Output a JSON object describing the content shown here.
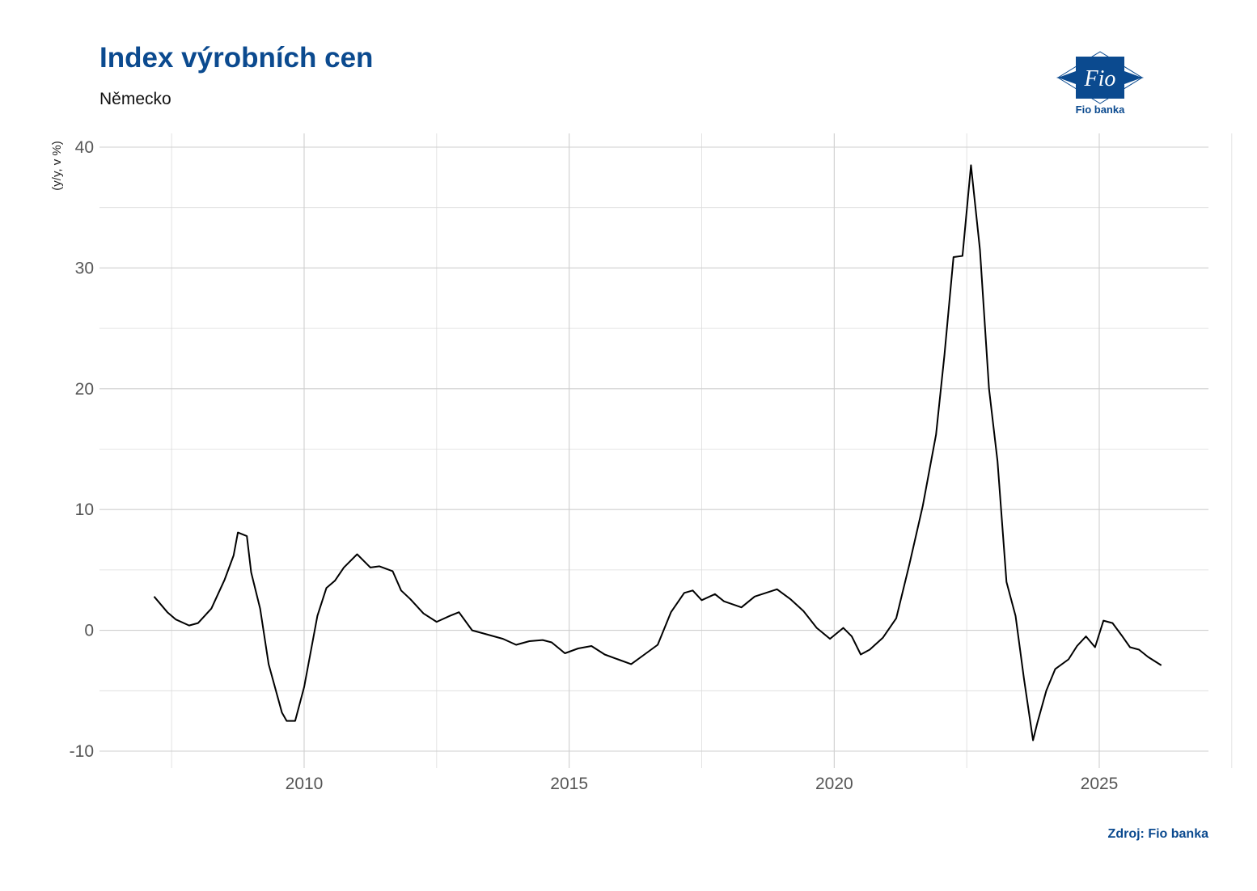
{
  "header": {
    "title": "Index výrobních cen",
    "subtitle": "Německo",
    "logo_text": "Fio banka",
    "logo_mark": "Fio"
  },
  "footer": {
    "source": "Zdroj: Fio banka"
  },
  "colors": {
    "brand": "#0b4a8f",
    "line": "#000000",
    "grid": "#d0d0d0"
  },
  "chart_data": {
    "type": "line",
    "title": "",
    "xlabel": "",
    "ylabel": "(y/y, v %)",
    "grid": true,
    "legend": "none",
    "xlim": [
      2006.4,
      2027.2
    ],
    "ylim": [
      -11.5,
      41
    ],
    "x_ticks": [
      {
        "value": 2010,
        "label": "2010"
      },
      {
        "value": 2015,
        "label": "2015"
      },
      {
        "value": 2020,
        "label": "2020"
      },
      {
        "value": 2025,
        "label": "2025"
      }
    ],
    "y_ticks": [
      {
        "value": 40,
        "label": "40"
      },
      {
        "value": 30,
        "label": "30"
      },
      {
        "value": 20,
        "label": "20"
      },
      {
        "value": 10,
        "label": "10"
      },
      {
        "value": 0,
        "label": "0"
      },
      {
        "value": -10,
        "label": "-10"
      }
    ],
    "series": [
      {
        "name": "",
        "x": [
          2007.17,
          2007.42,
          2007.58,
          2007.83,
          2008.0,
          2008.25,
          2008.5,
          2008.67,
          2008.75,
          2008.92,
          2009.0,
          2009.17,
          2009.33,
          2009.58,
          2009.67,
          2009.83,
          2010.0,
          2010.25,
          2010.42,
          2010.58,
          2010.75,
          2011.0,
          2011.25,
          2011.42,
          2011.67,
          2011.83,
          2012.0,
          2012.25,
          2012.5,
          2012.75,
          2012.92,
          2013.17,
          2013.42,
          2013.75,
          2014.0,
          2014.25,
          2014.5,
          2014.67,
          2014.92,
          2015.17,
          2015.42,
          2015.67,
          2015.92,
          2016.17,
          2016.42,
          2016.67,
          2016.92,
          2017.17,
          2017.33,
          2017.5,
          2017.75,
          2017.92,
          2018.25,
          2018.5,
          2018.92,
          2019.17,
          2019.42,
          2019.67,
          2019.92,
          2020.17,
          2020.33,
          2020.5,
          2020.67,
          2020.92,
          2021.17,
          2021.42,
          2021.67,
          2021.92,
          2022.08,
          2022.25,
          2022.42,
          2022.58,
          2022.75,
          2022.92,
          2023.08,
          2023.25,
          2023.42,
          2023.58,
          2023.75,
          2023.83,
          2024.0,
          2024.17,
          2024.42,
          2024.58,
          2024.75,
          2024.92,
          2025.08,
          2025.25,
          2025.42,
          2025.58,
          2025.75,
          2025.92,
          2026.17
        ],
        "values": [
          2.8,
          1.5,
          0.9,
          0.4,
          0.6,
          1.8,
          4.2,
          6.2,
          8.1,
          7.8,
          4.8,
          1.8,
          -2.8,
          -6.8,
          -7.5,
          -7.5,
          -4.7,
          1.2,
          3.5,
          4.1,
          5.2,
          6.3,
          5.2,
          5.3,
          4.9,
          3.3,
          2.6,
          1.4,
          0.7,
          1.2,
          1.5,
          0.0,
          -0.3,
          -0.7,
          -1.2,
          -0.9,
          -0.8,
          -1.0,
          -1.9,
          -1.5,
          -1.3,
          -2.0,
          -2.4,
          -2.8,
          -2.0,
          -1.2,
          1.5,
          3.1,
          3.3,
          2.5,
          3.0,
          2.4,
          1.9,
          2.8,
          3.4,
          2.6,
          1.6,
          0.2,
          -0.7,
          0.2,
          -0.5,
          -2.0,
          -1.6,
          -0.6,
          1.0,
          5.5,
          10.3,
          16.2,
          22.8,
          30.9,
          31.0,
          38.5,
          31.5,
          20.0,
          14.0,
          4.0,
          1.2,
          -4.0,
          -9.1,
          -7.7,
          -5.0,
          -3.2,
          -2.4,
          -1.3,
          -0.5,
          -1.4,
          0.8,
          0.6,
          -0.4,
          -1.4,
          -1.6,
          -2.2,
          -2.9
        ]
      }
    ]
  }
}
